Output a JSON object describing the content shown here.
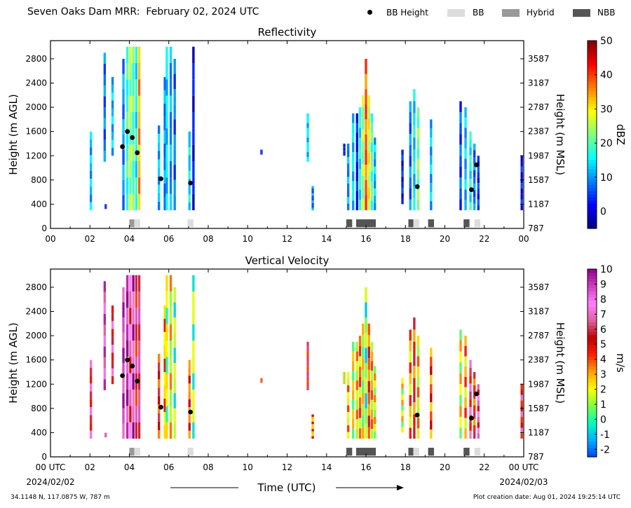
{
  "header": {
    "title": "Seven Oaks Dam MRR:  February 02, 2024 UTC",
    "legend": [
      {
        "label": "BB Height",
        "kind": "dot",
        "color": "#000000"
      },
      {
        "label": "BB",
        "kind": "swatch",
        "color": "#dddddd"
      },
      {
        "label": "Hybrid",
        "kind": "swatch",
        "color": "#999999"
      },
      {
        "label": "NBB",
        "kind": "swatch",
        "color": "#555555"
      }
    ]
  },
  "footer": {
    "location": "34.1148 N, 117.0875 W, 787 m",
    "created": "Plot creation date: Aug 01, 2024 19:25:14 UTC"
  },
  "chart_data": [
    {
      "type": "heatmap",
      "title": "Reflectivity",
      "xlabel": "Time (UTC)",
      "ylabel": "Height (m AGL)",
      "ylabel_right": "Height (m MSL)",
      "xlim": [
        0,
        24
      ],
      "ylim": [
        0,
        3100
      ],
      "xticks": [
        "00",
        "02",
        "04",
        "06",
        "08",
        "10",
        "12",
        "14",
        "16",
        "18",
        "20",
        "22",
        "00"
      ],
      "yticks": [
        0,
        400,
        800,
        1200,
        1600,
        2000,
        2400,
        2800
      ],
      "yticks_right": [
        "787",
        "1187",
        "1587",
        "1987",
        "2387",
        "2787",
        "3187",
        "3587"
      ],
      "colorbar": {
        "label": "dBZ",
        "range": [
          -5,
          50
        ],
        "ticks": [
          "0",
          "10",
          "20",
          "30",
          "40",
          "50"
        ],
        "tick_values": [
          0,
          10,
          20,
          30,
          40,
          50
        ],
        "colors": [
          "#00007f",
          "#0000ff",
          "#0080ff",
          "#00ffff",
          "#80ff80",
          "#ffff00",
          "#ff8000",
          "#ff0000",
          "#7f0000"
        ]
      },
      "echoes": [
        {
          "t": 2.05,
          "h0": 300,
          "h1": 1600,
          "v": 12
        },
        {
          "t": 2.75,
          "h0": 1100,
          "h1": 2900,
          "v": 8
        },
        {
          "t": 2.8,
          "h0": 320,
          "h1": 400,
          "v": 3
        },
        {
          "t": 3.15,
          "h0": 1200,
          "h1": 2500,
          "v": 12
        },
        {
          "t": 3.7,
          "h0": 300,
          "h1": 2800,
          "v": 10
        },
        {
          "t": 3.9,
          "h0": 300,
          "h1": 3000,
          "v": 18
        },
        {
          "t": 4.05,
          "h0": 300,
          "h1": 3000,
          "v": 24
        },
        {
          "t": 4.2,
          "h0": 300,
          "h1": 3000,
          "v": 20
        },
        {
          "t": 4.35,
          "h0": 300,
          "h1": 3000,
          "v": 16
        },
        {
          "t": 4.5,
          "h0": 300,
          "h1": 3000,
          "v": 34
        },
        {
          "t": 5.5,
          "h0": 300,
          "h1": 1700,
          "v": 12
        },
        {
          "t": 5.8,
          "h0": 300,
          "h1": 2500,
          "v": 9
        },
        {
          "t": 5.9,
          "h0": 300,
          "h1": 3000,
          "v": 14
        },
        {
          "t": 6.1,
          "h0": 300,
          "h1": 3000,
          "v": 10
        },
        {
          "t": 6.3,
          "h0": 300,
          "h1": 2800,
          "v": 8
        },
        {
          "t": 7.05,
          "h0": 300,
          "h1": 1600,
          "v": 14
        },
        {
          "t": 7.25,
          "h0": 300,
          "h1": 3000,
          "v": 2
        },
        {
          "t": 10.7,
          "h0": 1220,
          "h1": 1300,
          "v": 2
        },
        {
          "t": 13.05,
          "h0": 1100,
          "h1": 1900,
          "v": 14
        },
        {
          "t": 13.3,
          "h0": 300,
          "h1": 700,
          "v": 8
        },
        {
          "t": 14.9,
          "h0": 1200,
          "h1": 1400,
          "v": 2
        },
        {
          "t": 15.1,
          "h0": 300,
          "h1": 1400,
          "v": 10
        },
        {
          "t": 15.35,
          "h0": 300,
          "h1": 1900,
          "v": 14
        },
        {
          "t": 15.55,
          "h0": 300,
          "h1": 1900,
          "v": 2
        },
        {
          "t": 15.7,
          "h0": 300,
          "h1": 2000,
          "v": 16
        },
        {
          "t": 15.85,
          "h0": 300,
          "h1": 2200,
          "v": 24
        },
        {
          "t": 16.0,
          "h0": 300,
          "h1": 2800,
          "v": 38
        },
        {
          "t": 16.15,
          "h0": 300,
          "h1": 2200,
          "v": 28
        },
        {
          "t": 16.3,
          "h0": 300,
          "h1": 1900,
          "v": 20
        },
        {
          "t": 16.45,
          "h0": 300,
          "h1": 1500,
          "v": 12
        },
        {
          "t": 17.85,
          "h0": 400,
          "h1": 1300,
          "v": 3
        },
        {
          "t": 18.25,
          "h0": 300,
          "h1": 2100,
          "v": 8
        },
        {
          "t": 18.45,
          "h0": 300,
          "h1": 2300,
          "v": 14
        },
        {
          "t": 18.65,
          "h0": 300,
          "h1": 2000,
          "v": 22
        },
        {
          "t": 19.3,
          "h0": 300,
          "h1": 1800,
          "v": 12
        },
        {
          "t": 20.8,
          "h0": 300,
          "h1": 2100,
          "v": 6
        },
        {
          "t": 21.05,
          "h0": 300,
          "h1": 2000,
          "v": 12
        },
        {
          "t": 21.3,
          "h0": 300,
          "h1": 1600,
          "v": 16
        },
        {
          "t": 21.5,
          "h0": 300,
          "h1": 1400,
          "v": 8
        },
        {
          "t": 21.7,
          "h0": 300,
          "h1": 1200,
          "v": 4
        },
        {
          "t": 23.9,
          "h0": 300,
          "h1": 1200,
          "v": 2
        }
      ],
      "bb_height": [
        {
          "t": 3.65,
          "h": 1350
        },
        {
          "t": 3.9,
          "h": 1600
        },
        {
          "t": 4.15,
          "h": 1500
        },
        {
          "t": 4.4,
          "h": 1250
        },
        {
          "t": 5.6,
          "h": 820
        },
        {
          "t": 7.1,
          "h": 750
        },
        {
          "t": 18.6,
          "h": 690
        },
        {
          "t": 21.35,
          "h": 640
        },
        {
          "t": 21.6,
          "h": 1050
        }
      ],
      "bb_flags": [
        {
          "t0": 4.0,
          "t1": 4.25,
          "kind": "Hybrid"
        },
        {
          "t0": 4.25,
          "t1": 4.55,
          "kind": "BB"
        },
        {
          "t0": 6.95,
          "t1": 7.25,
          "kind": "BB"
        },
        {
          "t0": 15.0,
          "t1": 15.3,
          "kind": "NBB"
        },
        {
          "t0": 15.5,
          "t1": 16.5,
          "kind": "NBB"
        },
        {
          "t0": 18.15,
          "t1": 18.4,
          "kind": "NBB"
        },
        {
          "t0": 18.4,
          "t1": 18.7,
          "kind": "BB"
        },
        {
          "t0": 19.15,
          "t1": 19.45,
          "kind": "NBB"
        },
        {
          "t0": 20.95,
          "t1": 21.25,
          "kind": "NBB"
        },
        {
          "t0": 21.5,
          "t1": 21.8,
          "kind": "BB"
        }
      ]
    },
    {
      "type": "heatmap",
      "title": "Vertical Velocity",
      "xlabel": "Time (UTC)",
      "ylabel": "Height (m AGL)",
      "ylabel_right": "Height (m MSL)",
      "xlim": [
        0,
        24
      ],
      "ylim": [
        0,
        3100
      ],
      "xticks": [
        "00 UTC",
        "02",
        "04",
        "06",
        "08",
        "10",
        "12",
        "14",
        "16",
        "18",
        "20",
        "22",
        "00 UTC"
      ],
      "x_dates": [
        "2024/02/02",
        "2024/02/03"
      ],
      "yticks": [
        0,
        400,
        800,
        1200,
        1600,
        2000,
        2400,
        2800
      ],
      "yticks_right": [
        "787",
        "1187",
        "1587",
        "1987",
        "2387",
        "2787",
        "3187",
        "3587"
      ],
      "colorbar": {
        "label": "m/s",
        "range": [
          -2.5,
          10
        ],
        "ticks": [
          "-2",
          "-1",
          "0",
          "1",
          "2",
          "3",
          "4",
          "5",
          "6",
          "7",
          "8",
          "9",
          "10"
        ],
        "tick_values": [
          -2,
          -1,
          0,
          1,
          2,
          3,
          4,
          5,
          6,
          7,
          8,
          9,
          10
        ],
        "colors": [
          "#0040ff",
          "#00b0ff",
          "#00ffc0",
          "#80ff40",
          "#ffff00",
          "#ffa000",
          "#ff2000",
          "#c00000",
          "#e060a0",
          "#ff80ff",
          "#d040c0",
          "#900090"
        ]
      },
      "echoes": [
        {
          "t": 2.05,
          "h0": 300,
          "h1": 1600,
          "v": 6
        },
        {
          "t": 2.75,
          "h0": 1100,
          "h1": 2900,
          "v": 8
        },
        {
          "t": 2.8,
          "h0": 320,
          "h1": 400,
          "v": 7.5
        },
        {
          "t": 3.15,
          "h0": 1200,
          "h1": 2500,
          "v": 6
        },
        {
          "t": 3.7,
          "h0": 300,
          "h1": 2800,
          "v": 8.5
        },
        {
          "t": 3.9,
          "h0": 300,
          "h1": 3000,
          "v": 9.5
        },
        {
          "t": 4.05,
          "h0": 300,
          "h1": 3000,
          "v": 6.5
        },
        {
          "t": 4.2,
          "h0": 300,
          "h1": 3000,
          "v": 8.5
        },
        {
          "t": 4.35,
          "h0": 300,
          "h1": 3000,
          "v": 5.5
        },
        {
          "t": 4.5,
          "h0": 300,
          "h1": 3000,
          "v": 7
        },
        {
          "t": 5.5,
          "h0": 300,
          "h1": 1700,
          "v": 5
        },
        {
          "t": 5.8,
          "h0": 300,
          "h1": 2500,
          "v": 3
        },
        {
          "t": 5.9,
          "h0": 300,
          "h1": 3000,
          "v": 1.5
        },
        {
          "t": 6.1,
          "h0": 300,
          "h1": 3000,
          "v": 2
        },
        {
          "t": 6.3,
          "h0": 300,
          "h1": 2800,
          "v": 0.8
        },
        {
          "t": 7.05,
          "h0": 300,
          "h1": 1600,
          "v": 4
        },
        {
          "t": 7.25,
          "h0": 300,
          "h1": 3000,
          "v": 1
        },
        {
          "t": 10.7,
          "h0": 1220,
          "h1": 1300,
          "v": 4.5
        },
        {
          "t": 13.05,
          "h0": 1100,
          "h1": 1900,
          "v": 5.5
        },
        {
          "t": 13.3,
          "h0": 300,
          "h1": 700,
          "v": 3.5
        },
        {
          "t": 14.9,
          "h0": 1200,
          "h1": 1400,
          "v": 2
        },
        {
          "t": 15.1,
          "h0": 300,
          "h1": 1400,
          "v": 2.5
        },
        {
          "t": 15.35,
          "h0": 300,
          "h1": 1900,
          "v": 2
        },
        {
          "t": 15.55,
          "h0": 300,
          "h1": 1900,
          "v": 2.2
        },
        {
          "t": 15.7,
          "h0": 300,
          "h1": 2000,
          "v": 3.2
        },
        {
          "t": 15.85,
          "h0": 300,
          "h1": 2200,
          "v": 1.5
        },
        {
          "t": 16.0,
          "h0": 300,
          "h1": 2800,
          "v": 0.5
        },
        {
          "t": 16.15,
          "h0": 300,
          "h1": 2200,
          "v": 4.2
        },
        {
          "t": 16.3,
          "h0": 300,
          "h1": 1900,
          "v": 2.8
        },
        {
          "t": 16.45,
          "h0": 300,
          "h1": 1500,
          "v": 2
        },
        {
          "t": 17.85,
          "h0": 400,
          "h1": 1300,
          "v": 2
        },
        {
          "t": 18.25,
          "h0": 300,
          "h1": 2100,
          "v": 3
        },
        {
          "t": 18.45,
          "h0": 300,
          "h1": 2300,
          "v": 4.5
        },
        {
          "t": 18.65,
          "h0": 300,
          "h1": 2000,
          "v": 2.5
        },
        {
          "t": 19.3,
          "h0": 300,
          "h1": 1800,
          "v": 4
        },
        {
          "t": 20.8,
          "h0": 300,
          "h1": 2100,
          "v": 2
        },
        {
          "t": 21.05,
          "h0": 300,
          "h1": 2000,
          "v": 3
        },
        {
          "t": 21.3,
          "h0": 300,
          "h1": 1600,
          "v": 6
        },
        {
          "t": 21.5,
          "h0": 300,
          "h1": 1400,
          "v": 4.5
        },
        {
          "t": 21.7,
          "h0": 300,
          "h1": 1200,
          "v": 6.5
        },
        {
          "t": 23.9,
          "h0": 300,
          "h1": 1200,
          "v": 5.5
        }
      ],
      "bb_height": [
        {
          "t": 3.65,
          "h": 1340
        },
        {
          "t": 3.9,
          "h": 1600
        },
        {
          "t": 4.15,
          "h": 1500
        },
        {
          "t": 4.4,
          "h": 1250
        },
        {
          "t": 5.6,
          "h": 820
        },
        {
          "t": 7.1,
          "h": 740
        },
        {
          "t": 18.6,
          "h": 690
        },
        {
          "t": 21.35,
          "h": 640
        },
        {
          "t": 21.6,
          "h": 1040
        }
      ],
      "bb_flags": [
        {
          "t0": 4.0,
          "t1": 4.25,
          "kind": "Hybrid"
        },
        {
          "t0": 4.25,
          "t1": 4.55,
          "kind": "BB"
        },
        {
          "t0": 6.95,
          "t1": 7.25,
          "kind": "BB"
        },
        {
          "t0": 15.0,
          "t1": 15.3,
          "kind": "NBB"
        },
        {
          "t0": 15.5,
          "t1": 16.5,
          "kind": "NBB"
        },
        {
          "t0": 18.15,
          "t1": 18.4,
          "kind": "NBB"
        },
        {
          "t0": 18.4,
          "t1": 18.7,
          "kind": "BB"
        },
        {
          "t0": 19.15,
          "t1": 19.45,
          "kind": "NBB"
        },
        {
          "t0": 20.95,
          "t1": 21.25,
          "kind": "NBB"
        },
        {
          "t0": 21.5,
          "t1": 21.8,
          "kind": "BB"
        }
      ]
    }
  ]
}
